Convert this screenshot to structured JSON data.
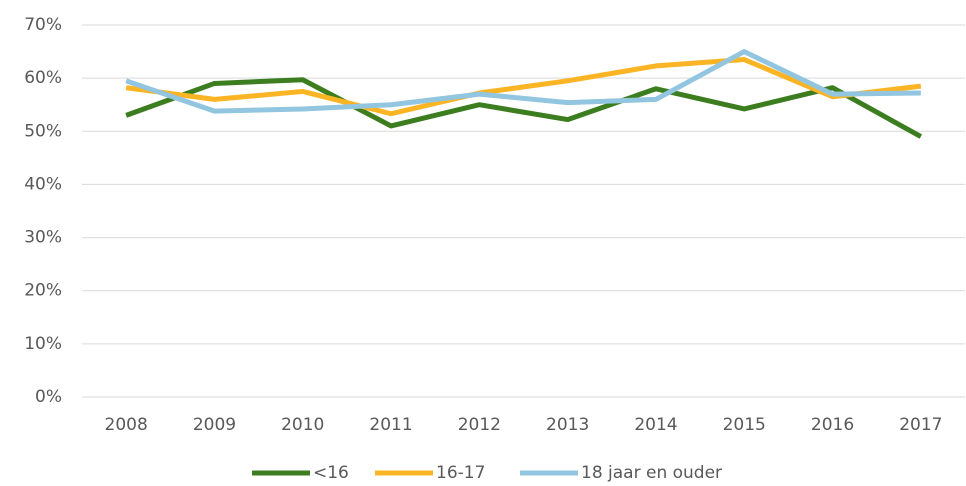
{
  "chart_data": {
    "type": "line",
    "categories": [
      "2008",
      "2009",
      "2010",
      "2011",
      "2012",
      "2013",
      "2014",
      "2015",
      "2016",
      "2017"
    ],
    "series": [
      {
        "name": "<16",
        "color": "#3b7d1f",
        "values": [
          53,
          59,
          59.7,
          51,
          55,
          52.2,
          58,
          54.2,
          58.2,
          49
        ]
      },
      {
        "name": "16-17",
        "color": "#fbb424",
        "values": [
          58.2,
          56,
          57.5,
          53.3,
          57.2,
          59.5,
          62.3,
          63.5,
          56.5,
          58.5
        ]
      },
      {
        "name": "18 jaar en ouder",
        "color": "#92c5e0",
        "values": [
          59.5,
          53.8,
          54.2,
          55,
          57,
          55.4,
          56,
          65,
          57,
          57.2
        ]
      }
    ],
    "ylim": [
      0,
      70
    ],
    "yticks": [
      {
        "value": 0,
        "label": "0%"
      },
      {
        "value": 10,
        "label": "10%"
      },
      {
        "value": 20,
        "label": "20%"
      },
      {
        "value": 30,
        "label": "30%"
      },
      {
        "value": 40,
        "label": "40%"
      },
      {
        "value": 50,
        "label": "50%"
      },
      {
        "value": 60,
        "label": "60%"
      },
      {
        "value": 70,
        "label": "70%"
      }
    ],
    "grid": true,
    "legend": "bottom"
  }
}
